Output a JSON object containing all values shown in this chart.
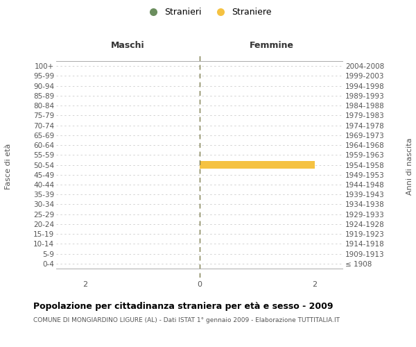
{
  "age_groups": [
    "100+",
    "95-99",
    "90-94",
    "85-89",
    "80-84",
    "75-79",
    "70-74",
    "65-69",
    "60-64",
    "55-59",
    "50-54",
    "45-49",
    "40-44",
    "35-39",
    "30-34",
    "25-29",
    "20-24",
    "15-19",
    "10-14",
    "5-9",
    "0-4"
  ],
  "birth_years": [
    "≤ 1908",
    "1909-1913",
    "1914-1918",
    "1919-1923",
    "1924-1928",
    "1929-1933",
    "1934-1938",
    "1939-1943",
    "1944-1948",
    "1949-1953",
    "1954-1958",
    "1959-1963",
    "1964-1968",
    "1969-1973",
    "1974-1978",
    "1979-1983",
    "1984-1988",
    "1989-1993",
    "1994-1998",
    "1999-2003",
    "2004-2008"
  ],
  "maschi_values": [
    0,
    0,
    0,
    0,
    0,
    0,
    0,
    0,
    0,
    0,
    0,
    0,
    0,
    0,
    0,
    0,
    0,
    0,
    0,
    0,
    0
  ],
  "femmine_values": [
    0,
    0,
    0,
    0,
    0,
    0,
    0,
    0,
    0,
    0,
    2,
    0,
    0,
    0,
    0,
    0,
    0,
    0,
    0,
    0,
    0
  ],
  "maschi_color": "#6b8e5e",
  "femmine_color": "#f5c242",
  "xlim": 2.5,
  "title": "Popolazione per cittadinanza straniera per età e sesso - 2009",
  "subtitle": "COMUNE DI MONGIARDINO LIGURE (AL) - Dati ISTAT 1° gennaio 2009 - Elaborazione TUTTITALIA.IT",
  "ylabel_left": "Fasce di età",
  "ylabel_right": "Anni di nascita",
  "header_maschi": "Maschi",
  "header_femmine": "Femmine",
  "legend_maschi": "Stranieri",
  "legend_femmine": "Straniere",
  "bg_color": "#ffffff",
  "grid_color": "#cccccc",
  "center_line_color": "#7a7a4a"
}
